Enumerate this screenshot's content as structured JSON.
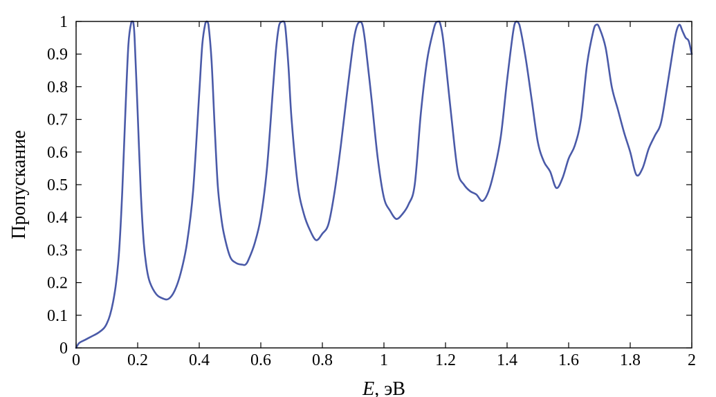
{
  "chart_data": {
    "type": "line",
    "title": "",
    "xlabel_italic": "E",
    "xlabel_unit": ", эВ",
    "ylabel": "Пропускание",
    "xlim": [
      0,
      2
    ],
    "ylim": [
      0,
      1
    ],
    "grid": false,
    "line_color": "#4a5aa8",
    "x_ticks": [
      {
        "value": 0,
        "label": "0"
      },
      {
        "value": 0.2,
        "label": "0.2"
      },
      {
        "value": 0.4,
        "label": "0.4"
      },
      {
        "value": 0.6,
        "label": "0.6"
      },
      {
        "value": 0.8,
        "label": "0.8"
      },
      {
        "value": 1,
        "label": "1"
      },
      {
        "value": 1.2,
        "label": "1.2"
      },
      {
        "value": 1.4,
        "label": "1.4"
      },
      {
        "value": 1.6,
        "label": "1.6"
      },
      {
        "value": 1.8,
        "label": "1.8"
      },
      {
        "value": 2,
        "label": "2"
      }
    ],
    "y_ticks": [
      {
        "value": 0,
        "label": "0"
      },
      {
        "value": 0.1,
        "label": "0.1"
      },
      {
        "value": 0.2,
        "label": "0.2"
      },
      {
        "value": 0.3,
        "label": "0.3"
      },
      {
        "value": 0.4,
        "label": "0.4"
      },
      {
        "value": 0.5,
        "label": "0.5"
      },
      {
        "value": 0.6,
        "label": "0.6"
      },
      {
        "value": 0.7,
        "label": "0.7"
      },
      {
        "value": 0.8,
        "label": "0.8"
      },
      {
        "value": 0.9,
        "label": "0.9"
      },
      {
        "value": 1,
        "label": "1"
      }
    ],
    "series": [
      {
        "x": [
          0,
          0.01,
          0.03,
          0.05,
          0.07,
          0.09,
          0.1,
          0.11,
          0.12,
          0.13,
          0.14,
          0.15,
          0.16,
          0.17,
          0.18,
          0.185,
          0.19,
          0.2,
          0.21,
          0.22,
          0.23,
          0.24,
          0.26,
          0.28,
          0.3,
          0.32,
          0.34,
          0.36,
          0.38,
          0.4,
          0.41,
          0.42,
          0.425,
          0.43,
          0.44,
          0.45,
          0.46,
          0.47,
          0.48,
          0.5,
          0.52,
          0.54,
          0.55,
          0.56,
          0.58,
          0.6,
          0.62,
          0.64,
          0.65,
          0.66,
          0.67,
          0.675,
          0.68,
          0.69,
          0.7,
          0.72,
          0.74,
          0.76,
          0.78,
          0.8,
          0.82,
          0.84,
          0.86,
          0.88,
          0.9,
          0.91,
          0.92,
          0.93,
          0.94,
          0.96,
          0.98,
          1,
          1.02,
          1.04,
          1.06,
          1.08,
          1.1,
          1.12,
          1.14,
          1.16,
          1.17,
          1.18,
          1.19,
          1.2,
          1.22,
          1.24,
          1.26,
          1.28,
          1.3,
          1.32,
          1.34,
          1.36,
          1.38,
          1.4,
          1.42,
          1.43,
          1.44,
          1.46,
          1.48,
          1.5,
          1.52,
          1.54,
          1.56,
          1.58,
          1.6,
          1.62,
          1.64,
          1.66,
          1.68,
          1.69,
          1.7,
          1.72,
          1.74,
          1.76,
          1.78,
          1.8,
          1.82,
          1.84,
          1.86,
          1.88,
          1.9,
          1.92,
          1.94,
          1.95,
          1.96,
          1.97,
          1.98,
          1.99,
          2
        ],
        "y": [
          0,
          0.015,
          0.025,
          0.035,
          0.045,
          0.06,
          0.075,
          0.1,
          0.14,
          0.2,
          0.3,
          0.48,
          0.72,
          0.93,
          1.0,
          1.0,
          0.95,
          0.72,
          0.48,
          0.32,
          0.24,
          0.2,
          0.165,
          0.152,
          0.15,
          0.175,
          0.23,
          0.32,
          0.48,
          0.78,
          0.93,
          0.995,
          1.0,
          0.99,
          0.88,
          0.68,
          0.5,
          0.41,
          0.35,
          0.28,
          0.26,
          0.255,
          0.255,
          0.27,
          0.32,
          0.4,
          0.55,
          0.8,
          0.92,
          0.99,
          1.0,
          1.0,
          0.98,
          0.86,
          0.7,
          0.5,
          0.41,
          0.36,
          0.33,
          0.35,
          0.38,
          0.48,
          0.62,
          0.78,
          0.93,
          0.98,
          0.998,
          0.99,
          0.93,
          0.76,
          0.58,
          0.46,
          0.42,
          0.395,
          0.41,
          0.44,
          0.5,
          0.72,
          0.88,
          0.97,
          0.998,
          1.0,
          0.96,
          0.88,
          0.7,
          0.54,
          0.5,
          0.48,
          0.47,
          0.45,
          0.48,
          0.55,
          0.65,
          0.82,
          0.97,
          1.0,
          0.99,
          0.89,
          0.76,
          0.63,
          0.57,
          0.54,
          0.49,
          0.52,
          0.58,
          0.62,
          0.7,
          0.87,
          0.97,
          0.99,
          0.98,
          0.92,
          0.8,
          0.73,
          0.66,
          0.6,
          0.53,
          0.55,
          0.61,
          0.65,
          0.69,
          0.8,
          0.92,
          0.97,
          0.99,
          0.97,
          0.95,
          0.94,
          0.9
        ]
      }
    ]
  }
}
